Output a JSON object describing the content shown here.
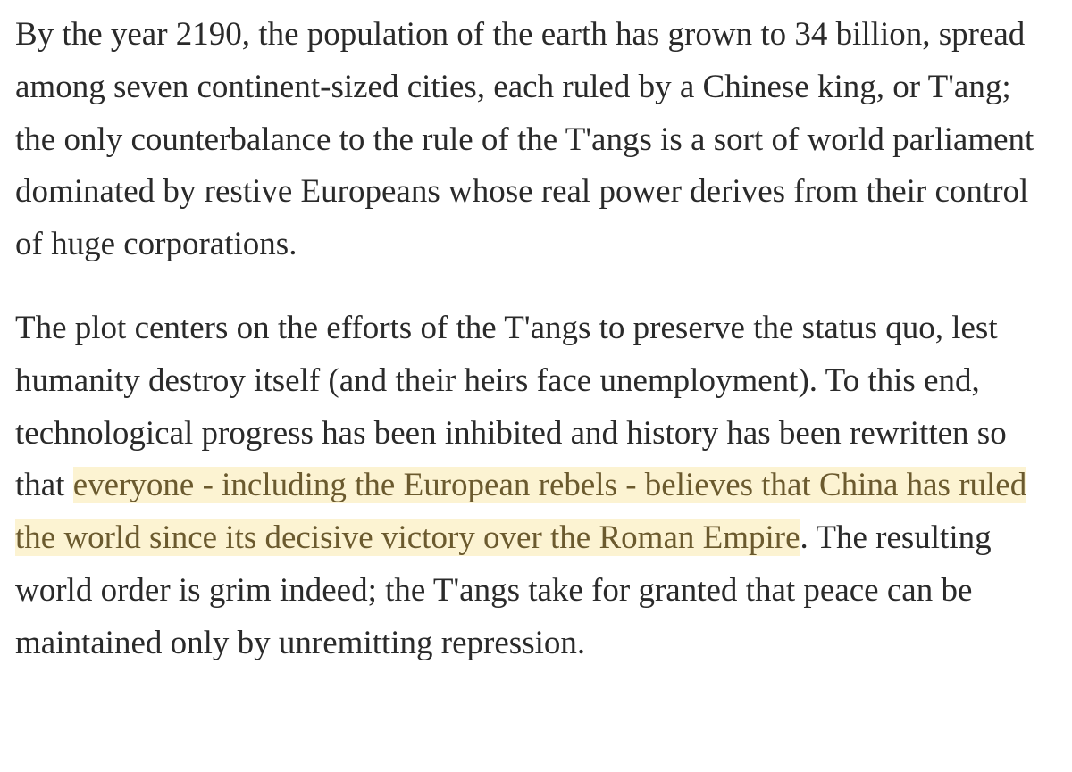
{
  "article": {
    "paragraph_1": "By the year 2190, the population of the earth has grown to 34 billion, spread among seven continent-sized cities, each ruled by a Chinese king, or T'ang; the only counterbalance to the rule of the T'angs is a sort of world parliament dominated by restive Europeans whose real power derives from their control of huge corporations.",
    "paragraph_2": {
      "before_highlight": "The plot centers on the efforts of the T'angs to preserve the status quo, lest humanity destroy itself (and their heirs face unemployment). To this end, technological progress has been inhibited and history has been rewritten so that ",
      "highlight": "everyone - including the European rebels - believes that China has ruled the world since its decisive victory over the Roman Empire",
      "after_highlight": ". The resulting world order is grim indeed; the T'angs take for granted that peace can be maintained only by unremitting repression."
    }
  },
  "colors": {
    "text": "#2a2a2a",
    "highlight_background": "#fcf3d2",
    "highlight_text": "#6b5a2e"
  }
}
